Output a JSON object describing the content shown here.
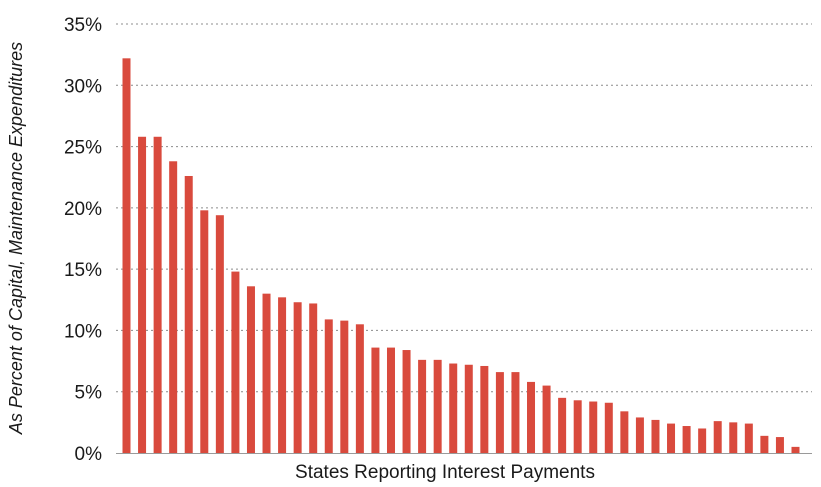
{
  "chart_data": {
    "type": "bar",
    "title": "",
    "xlabel": "States Reporting Interest Payments",
    "ylabel": "As Percent of Capital, Maintenance Expenditures",
    "ylim": [
      0,
      35
    ],
    "yticks": [
      "0%",
      "5%",
      "10%",
      "15%",
      "20%",
      "25%",
      "30%",
      "35%"
    ],
    "ytick_values": [
      0,
      5,
      10,
      15,
      20,
      25,
      30,
      35
    ],
    "grid": "horizontal dotted",
    "bar_color": "#d94a3d",
    "values": [
      32.2,
      25.8,
      25.8,
      23.8,
      22.6,
      19.8,
      19.4,
      14.8,
      13.6,
      13.0,
      12.7,
      12.3,
      12.2,
      10.9,
      10.8,
      10.5,
      8.6,
      8.6,
      8.4,
      7.6,
      7.6,
      7.3,
      7.2,
      7.1,
      6.6,
      6.6,
      5.8,
      5.5,
      4.5,
      4.3,
      4.2,
      4.1,
      3.4,
      2.9,
      2.7,
      2.4,
      2.2,
      2.0,
      2.6,
      2.5,
      2.4,
      1.4,
      1.3,
      0.5
    ]
  }
}
